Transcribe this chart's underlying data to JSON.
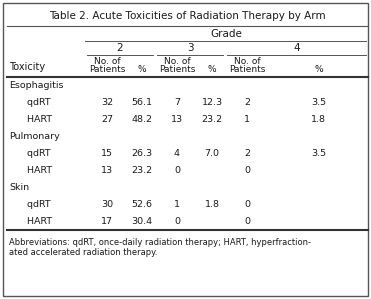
{
  "title_bold": "Table 2.",
  "title_rest": " Acute Toxicities of Radiation Therapy by Arm",
  "grade_header": "Grade",
  "grade2_header": "2",
  "grade3_header": "3",
  "grade4_header": "4",
  "col_headers_line1": [
    "No. of",
    "",
    "No. of",
    "",
    "No. of",
    ""
  ],
  "col_headers_line2": [
    "Patients",
    "%",
    "Patients",
    "%",
    "Patients",
    "%"
  ],
  "toxicity_label": "Toxicity",
  "categories": [
    {
      "name": "Esophagitis",
      "indent": false
    },
    {
      "name": "  qdRT",
      "indent": true
    },
    {
      "name": "  HART",
      "indent": true
    },
    {
      "name": "Pulmonary",
      "indent": false
    },
    {
      "name": "  qdRT",
      "indent": true
    },
    {
      "name": "  HART",
      "indent": true
    },
    {
      "name": "Skin",
      "indent": false
    },
    {
      "name": "  qdRT",
      "indent": true
    },
    {
      "name": "  HART",
      "indent": true
    }
  ],
  "data": [
    [
      "",
      "",
      "",
      "",
      "",
      ""
    ],
    [
      "32",
      "56.1",
      "7",
      "12.3",
      "2",
      "3.5"
    ],
    [
      "27",
      "48.2",
      "13",
      "23.2",
      "1",
      "1.8"
    ],
    [
      "",
      "",
      "",
      "",
      "",
      ""
    ],
    [
      "15",
      "26.3",
      "4",
      "7.0",
      "2",
      "3.5"
    ],
    [
      "13",
      "23.2",
      "0",
      "",
      "0",
      ""
    ],
    [
      "",
      "",
      "",
      "",
      "",
      ""
    ],
    [
      "30",
      "52.6",
      "1",
      "1.8",
      "0",
      ""
    ],
    [
      "17",
      "30.4",
      "0",
      "",
      "0",
      ""
    ]
  ],
  "footnote_line1": "Abbreviations: qdRT, once-daily radiation therapy; HART, hyperfraction-",
  "footnote_line2": "ated accelerated radiation therapy.",
  "bg_gray": "#e8e8e8",
  "bg_white": "#ffffff",
  "border_color": "#555555",
  "line_color": "#555555",
  "heavy_line_color": "#333333",
  "text_color": "#1a1a1a"
}
